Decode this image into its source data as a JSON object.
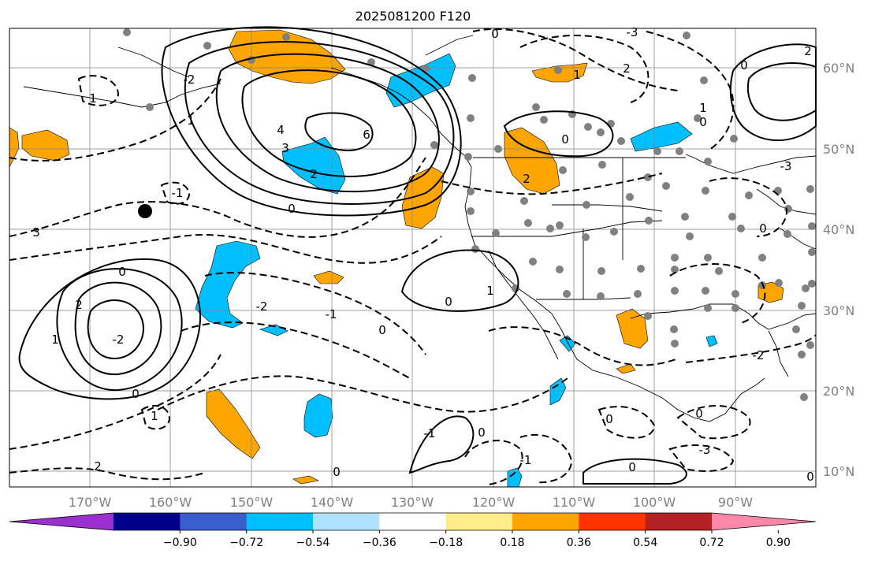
{
  "title": "2025081200 F120",
  "lon_labels": [
    "170°W",
    "160°W",
    "150°W",
    "140°W",
    "130°W",
    "120°W",
    "110°W",
    "100°W",
    "90°W"
  ],
  "lat_labels": [
    "60°N",
    "50°N",
    "40°N",
    "30°N",
    "20°N",
    "10°N"
  ],
  "colorbar": {
    "colors": [
      "#9b30d0",
      "#00008b",
      "#3a5fcd",
      "#00bfff",
      "#b0e2ff",
      "#ffffff",
      "#ffec8b",
      "#ffa500",
      "#ff3300",
      "#b22222",
      "#ff88aa"
    ],
    "tick_labels": [
      "−0.90",
      "−0.72",
      "−0.54",
      "−0.36",
      "−0.18",
      "0.18",
      "0.36",
      "0.54",
      "0.72",
      "0.90"
    ]
  },
  "contour_labels": [
    "0",
    "-3",
    "2",
    "1",
    "0",
    "4",
    "3",
    "2",
    "6",
    "-2",
    "1",
    "-1",
    "0",
    "3",
    "2",
    "1",
    "0",
    "-2",
    "-2",
    "-1",
    "0",
    "0",
    "1",
    "2",
    "0",
    "-1",
    "1",
    "0",
    "0",
    "-1",
    "0",
    "0",
    "0",
    "-3",
    "-2",
    "1",
    "2",
    "0",
    "-3",
    "0",
    "1",
    "0",
    "2",
    "0"
  ],
  "colors": {
    "positive_fill": "#ffa500",
    "negative_fill": "#00bfff",
    "station_dot": "#808080",
    "marker": "#000000"
  }
}
